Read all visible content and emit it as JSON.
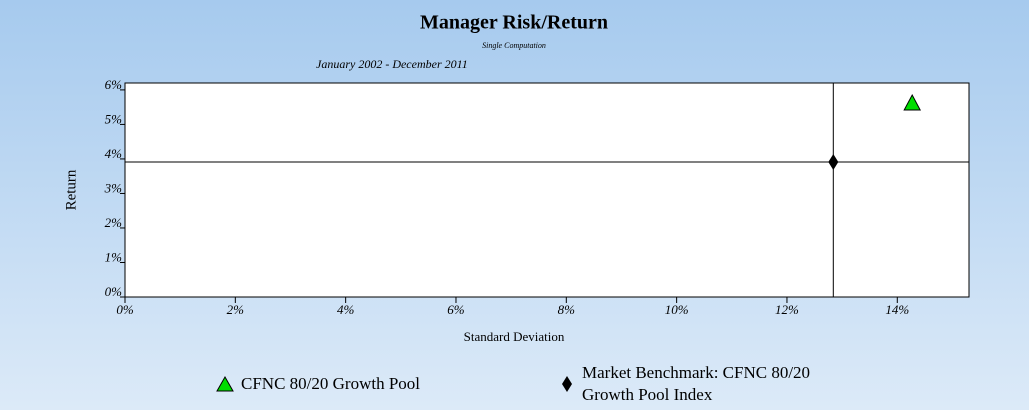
{
  "chart_data": {
    "type": "scatter",
    "title": "Manager Risk/Return",
    "subtitle": "Single Computation",
    "date_range": "January 2002 - December 2011",
    "x_label": "Standard Deviation",
    "y_label": "Return",
    "xlim": [
      0,
      15.3
    ],
    "ylim": [
      0,
      6.2
    ],
    "xticks": [
      {
        "value": 0,
        "label": "0%"
      },
      {
        "value": 2,
        "label": "2%"
      },
      {
        "value": 4,
        "label": "4%"
      },
      {
        "value": 6,
        "label": "6%"
      },
      {
        "value": 8,
        "label": "8%"
      },
      {
        "value": 10,
        "label": "10%"
      },
      {
        "value": 12,
        "label": "12%"
      },
      {
        "value": 14,
        "label": "14%"
      }
    ],
    "yticks": [
      {
        "value": 0,
        "label": "0%"
      },
      {
        "value": 1,
        "label": "1%"
      },
      {
        "value": 2,
        "label": "2%"
      },
      {
        "value": 3,
        "label": "3%"
      },
      {
        "value": 4,
        "label": "4%"
      },
      {
        "value": 5,
        "label": "5%"
      },
      {
        "value": 6,
        "label": "6%"
      }
    ],
    "series": [
      {
        "name": "CFNC 80/20 Growth Pool",
        "color": "#00dd00",
        "marker": "triangle",
        "x": [
          14.27
        ],
        "values": [
          5.62
        ]
      },
      {
        "name": "Market Benchmark: CFNC 80/20 Growth Pool Index",
        "color": "#000000",
        "marker": "diamond",
        "x": [
          12.84
        ],
        "values": [
          3.91
        ]
      }
    ]
  }
}
